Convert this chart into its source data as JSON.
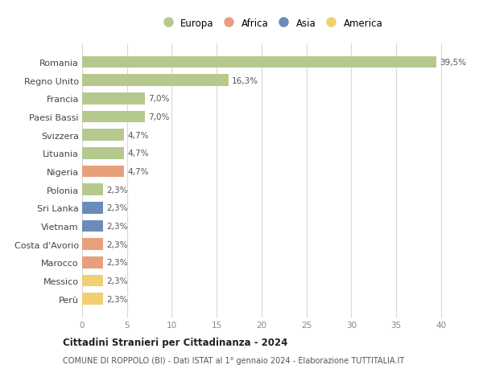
{
  "countries": [
    "Romania",
    "Regno Unito",
    "Francia",
    "Paesi Bassi",
    "Svizzera",
    "Lituania",
    "Nigeria",
    "Polonia",
    "Sri Lanka",
    "Vietnam",
    "Costa d'Avorio",
    "Marocco",
    "Messico",
    "Perù"
  ],
  "values": [
    39.5,
    16.3,
    7.0,
    7.0,
    4.7,
    4.7,
    4.7,
    2.3,
    2.3,
    2.3,
    2.3,
    2.3,
    2.3,
    2.3
  ],
  "labels": [
    "39,5%",
    "16,3%",
    "7,0%",
    "7,0%",
    "4,7%",
    "4,7%",
    "4,7%",
    "2,3%",
    "2,3%",
    "2,3%",
    "2,3%",
    "2,3%",
    "2,3%",
    "2,3%"
  ],
  "continents": [
    "Europa",
    "Europa",
    "Europa",
    "Europa",
    "Europa",
    "Europa",
    "Africa",
    "Europa",
    "Asia",
    "Asia",
    "Africa",
    "Africa",
    "America",
    "America"
  ],
  "continent_colors": {
    "Europa": "#b5c98e",
    "Africa": "#e8a07c",
    "Asia": "#6b8cba",
    "America": "#f0d070"
  },
  "legend_order": [
    "Europa",
    "Africa",
    "Asia",
    "America"
  ],
  "title": "Cittadini Stranieri per Cittadinanza - 2024",
  "subtitle": "COMUNE DI ROPPOLO (BI) - Dati ISTAT al 1° gennaio 2024 - Elaborazione TUTTITALIA.IT",
  "xlim": [
    0,
    42
  ],
  "xticks": [
    0,
    5,
    10,
    15,
    20,
    25,
    30,
    35,
    40
  ],
  "background_color": "#ffffff",
  "grid_color": "#d8d8d8"
}
